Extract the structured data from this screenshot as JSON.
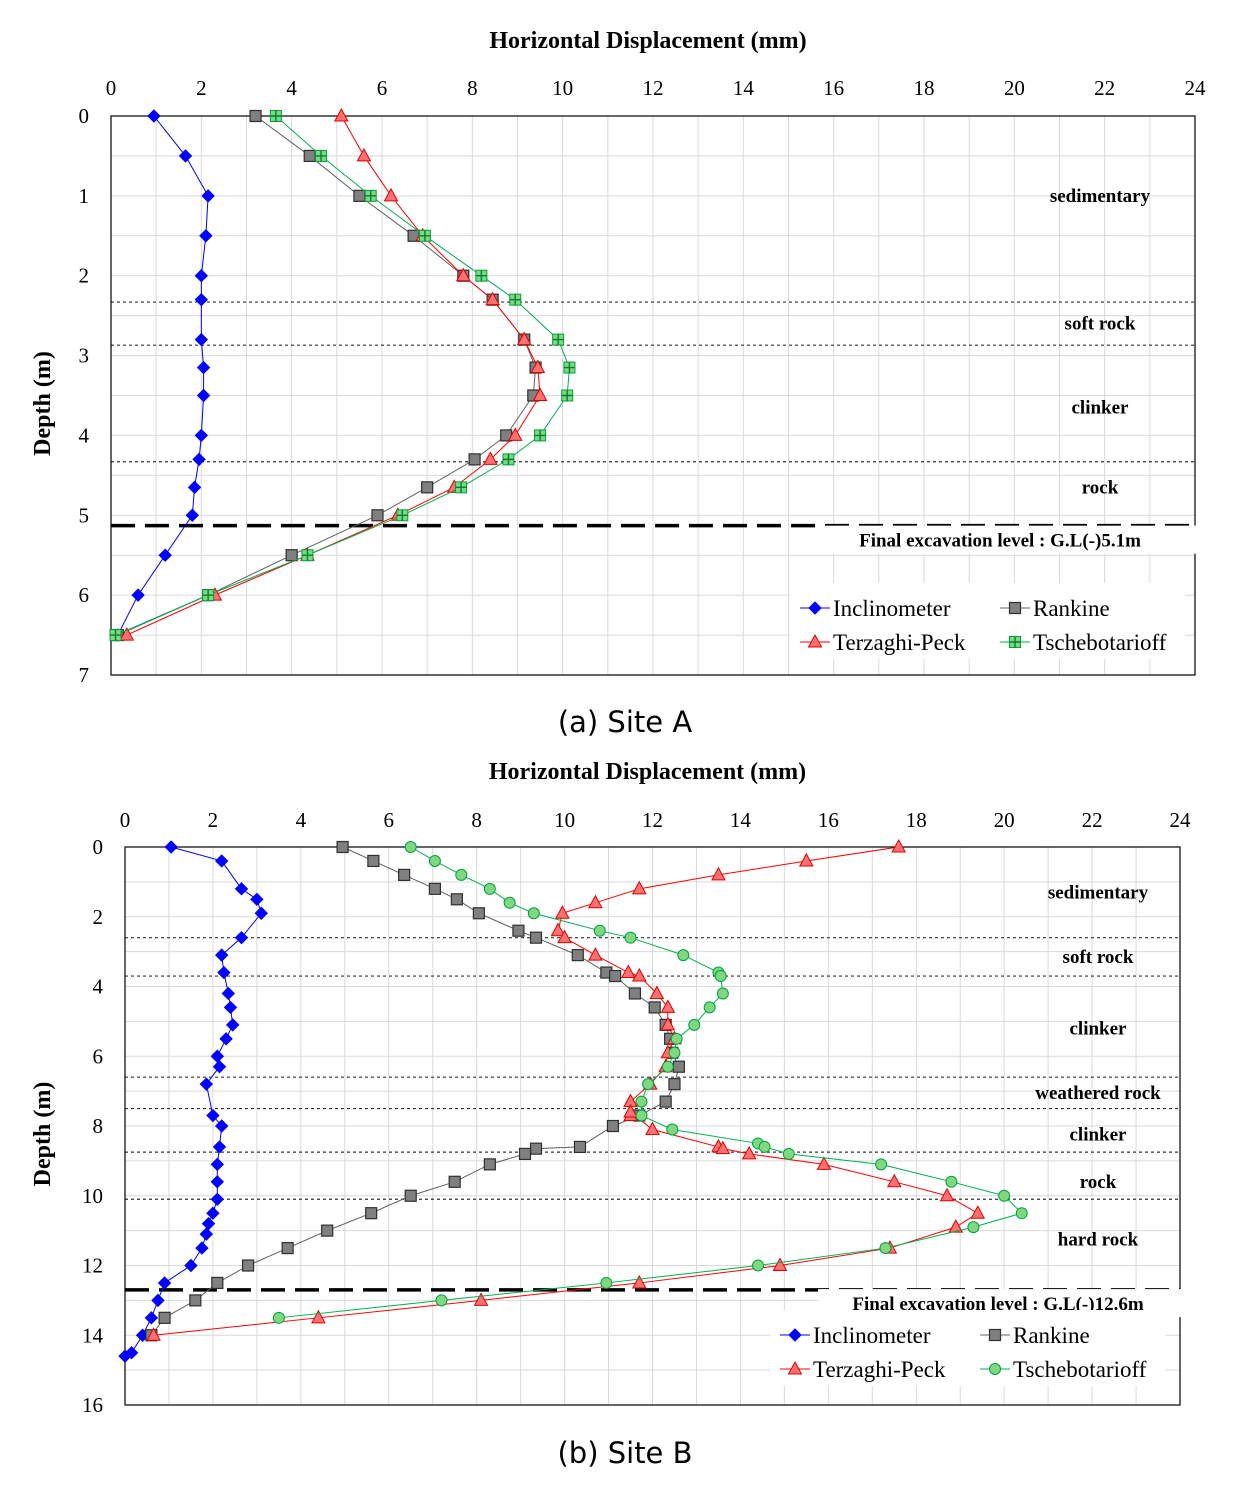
{
  "chart_data": [
    {
      "type": "line",
      "caption": "(a) Site A",
      "title": "Horizontal Displacement (mm)",
      "xlabel": "Horizontal Displacement (mm)",
      "ylabel": "Depth (m)",
      "xlim": [
        0,
        24
      ],
      "ylim": [
        0,
        7
      ],
      "x_ticks": [
        "0",
        "2",
        "4",
        "6",
        "8",
        "10",
        "12",
        "14",
        "16",
        "18",
        "20",
        "22",
        "24"
      ],
      "y_ticks": [
        "0",
        "1",
        "2",
        "3",
        "4",
        "5",
        "6",
        "7"
      ],
      "layers": [
        {
          "label": "sedimentary",
          "depth": 1.0
        },
        {
          "label": "soft rock",
          "depth": 2.6
        },
        {
          "label": "clinker",
          "depth": 3.65
        },
        {
          "label": "rock",
          "depth": 4.65
        }
      ],
      "layer_boundaries": [
        2.33,
        2.87,
        4.33
      ],
      "excavation": {
        "label": "Final excavation level : G.L(-)5.1m",
        "depth": 5.13,
        "label_depth": 5.38
      },
      "series": [
        {
          "name": "Inclinometer",
          "color": "#0000ff",
          "marker": "diamond",
          "x": [
            0.95,
            1.65,
            2.15,
            2.1,
            2.0,
            2.0,
            2.0,
            2.05,
            2.05,
            2.0,
            1.95,
            1.85,
            1.8,
            1.2,
            0.6,
            0.15
          ],
          "y": [
            0,
            0.5,
            1.0,
            1.5,
            2.0,
            2.3,
            2.8,
            3.15,
            3.5,
            4.0,
            4.3,
            4.65,
            5.0,
            5.5,
            6.0,
            6.5
          ]
        },
        {
          "name": "Rankine",
          "color": "#404040",
          "marker": "square",
          "x": [
            3.2,
            4.4,
            5.5,
            6.7,
            7.8,
            8.45,
            9.15,
            9.4,
            9.35,
            8.75,
            8.05,
            7.0,
            5.9,
            4.0,
            2.15,
            0.15
          ],
          "y": [
            0,
            0.5,
            1.0,
            1.5,
            2.0,
            2.3,
            2.8,
            3.15,
            3.5,
            4.0,
            4.3,
            4.65,
            5.0,
            5.5,
            6.0,
            6.5
          ]
        },
        {
          "name": "Terzaghi-Peck",
          "color": "#ff0000",
          "marker": "triangle",
          "x": [
            5.1,
            5.6,
            6.2,
            6.9,
            7.8,
            8.45,
            9.15,
            9.45,
            9.5,
            8.95,
            8.4,
            7.6,
            6.35,
            4.35,
            2.3,
            0.35
          ],
          "y": [
            0,
            0.5,
            1.0,
            1.5,
            2.0,
            2.3,
            2.8,
            3.15,
            3.5,
            4.0,
            4.3,
            4.65,
            5.0,
            5.5,
            6.0,
            6.5
          ]
        },
        {
          "name": "Tschebotarioff",
          "color": "#00b050",
          "marker": "plus-square",
          "x": [
            3.65,
            4.65,
            5.75,
            6.95,
            8.2,
            8.95,
            9.9,
            10.15,
            10.1,
            9.5,
            8.8,
            7.75,
            6.45,
            4.35,
            2.15,
            0.1
          ],
          "y": [
            0,
            0.5,
            1.0,
            1.5,
            2.0,
            2.3,
            2.8,
            3.15,
            3.5,
            4.0,
            4.3,
            4.65,
            5.0,
            5.5,
            6.0,
            6.5
          ]
        }
      ]
    },
    {
      "type": "line",
      "caption": "(b) Site B",
      "title": "Horizontal Displacement (mm)",
      "xlabel": "Horizontal Displacement (mm)",
      "ylabel": "Depth (m)",
      "xlim": [
        0,
        24
      ],
      "ylim": [
        0,
        16
      ],
      "x_ticks": [
        "0",
        "2",
        "4",
        "6",
        "8",
        "10",
        "12",
        "14",
        "16",
        "18",
        "20",
        "22",
        "24"
      ],
      "y_ticks": [
        "0",
        "2",
        "4",
        "6",
        "8",
        "10",
        "12",
        "14",
        "16"
      ],
      "layers": [
        {
          "label": "sedimentary",
          "depth": 1.3
        },
        {
          "label": "soft rock",
          "depth": 3.15
        },
        {
          "label": "clinker",
          "depth": 5.2
        },
        {
          "label": "weathered rock",
          "depth": 7.05
        },
        {
          "label": "clinker",
          "depth": 8.25
        },
        {
          "label": "rock",
          "depth": 9.6
        },
        {
          "label": "hard rock",
          "depth": 11.25
        }
      ],
      "layer_boundaries": [
        2.6,
        3.7,
        6.6,
        7.5,
        8.75,
        10.1
      ],
      "excavation": {
        "label": "Final excavation level : G.L(-)12.6m",
        "depth": 12.7,
        "label_depth": 13.25
      },
      "series": [
        {
          "name": "Inclinometer",
          "color": "#0000ff",
          "marker": "diamond",
          "x": [
            1.05,
            2.2,
            2.65,
            3.0,
            3.1,
            2.65,
            2.2,
            2.25,
            2.35,
            2.4,
            2.45,
            2.3,
            2.1,
            2.15,
            1.85,
            2.0,
            2.2,
            2.15,
            2.1,
            2.1,
            2.1,
            2.0,
            1.9,
            1.85,
            1.75,
            1.5,
            0.9,
            0.75,
            0.6,
            0.4,
            0.15,
            0.0
          ],
          "y": [
            0,
            0.4,
            1.2,
            1.5,
            1.9,
            2.6,
            3.1,
            3.6,
            4.2,
            4.6,
            5.1,
            5.5,
            6.0,
            6.3,
            6.8,
            7.7,
            8.0,
            8.6,
            9.1,
            9.6,
            10.1,
            10.5,
            10.8,
            11.1,
            11.5,
            12.0,
            12.5,
            13.0,
            13.5,
            14.0,
            14.5,
            14.6
          ]
        },
        {
          "name": "Rankine",
          "color": "#404040",
          "marker": "square",
          "x": [
            4.95,
            5.65,
            6.35,
            7.05,
            7.55,
            8.05,
            8.95,
            9.35,
            10.3,
            10.95,
            11.15,
            11.6,
            12.05,
            12.3,
            12.4,
            12.45,
            12.6,
            12.5,
            12.3,
            11.7,
            11.1,
            10.35,
            9.35,
            9.1,
            8.3,
            7.5,
            6.5,
            5.6,
            4.6,
            3.7,
            2.8,
            2.1,
            1.6,
            0.9,
            0.6
          ],
          "y": [
            0,
            0.4,
            0.8,
            1.2,
            1.5,
            1.9,
            2.4,
            2.6,
            3.1,
            3.6,
            3.7,
            4.2,
            4.6,
            5.1,
            5.5,
            5.9,
            6.3,
            6.8,
            7.3,
            7.7,
            8.0,
            8.6,
            8.65,
            8.8,
            9.1,
            9.6,
            10.0,
            10.5,
            11.0,
            11.5,
            12.0,
            12.5,
            13.0,
            13.5,
            14.0
          ]
        },
        {
          "name": "Terzaghi-Peck",
          "color": "#ff0000",
          "marker": "triangle",
          "x": [
            17.6,
            15.5,
            13.5,
            11.7,
            10.7,
            9.95,
            9.85,
            10.0,
            10.7,
            11.45,
            11.7,
            12.1,
            12.35,
            12.35,
            12.5,
            12.35,
            12.3,
            11.95,
            11.5,
            11.5,
            11.5,
            12.0,
            13.5,
            13.6,
            14.2,
            15.9,
            17.5,
            18.7,
            19.4,
            18.9,
            17.4,
            14.9,
            11.7,
            8.1,
            4.4,
            0.65
          ],
          "y": [
            0,
            0.4,
            0.8,
            1.2,
            1.6,
            1.9,
            2.4,
            2.6,
            3.1,
            3.6,
            3.7,
            4.2,
            4.6,
            5.1,
            5.5,
            5.9,
            6.3,
            6.8,
            7.3,
            7.7,
            7.6,
            8.1,
            8.6,
            8.65,
            8.8,
            9.1,
            9.6,
            10.0,
            10.5,
            10.9,
            11.5,
            12.0,
            12.5,
            13.0,
            13.5,
            14.0
          ]
        },
        {
          "name": "Tschebotarioff",
          "color": "#00b050",
          "marker": "circle",
          "x": [
            6.5,
            7.05,
            7.65,
            8.3,
            8.75,
            9.3,
            10.8,
            11.5,
            12.7,
            13.5,
            13.55,
            13.6,
            13.3,
            12.95,
            12.55,
            12.5,
            12.35,
            11.9,
            11.75,
            11.75,
            12.45,
            14.4,
            14.55,
            15.1,
            17.2,
            18.8,
            20.0,
            20.4,
            19.3,
            17.3,
            14.4,
            10.95,
            7.2,
            3.5
          ],
          "y": [
            0,
            0.4,
            0.8,
            1.2,
            1.6,
            1.9,
            2.4,
            2.6,
            3.1,
            3.6,
            3.7,
            4.2,
            4.6,
            5.1,
            5.5,
            5.9,
            6.3,
            6.8,
            7.3,
            7.7,
            8.1,
            8.5,
            8.6,
            8.8,
            9.1,
            9.6,
            10.0,
            10.5,
            10.9,
            11.5,
            12.0,
            12.5,
            13.0,
            13.5
          ]
        }
      ]
    }
  ]
}
